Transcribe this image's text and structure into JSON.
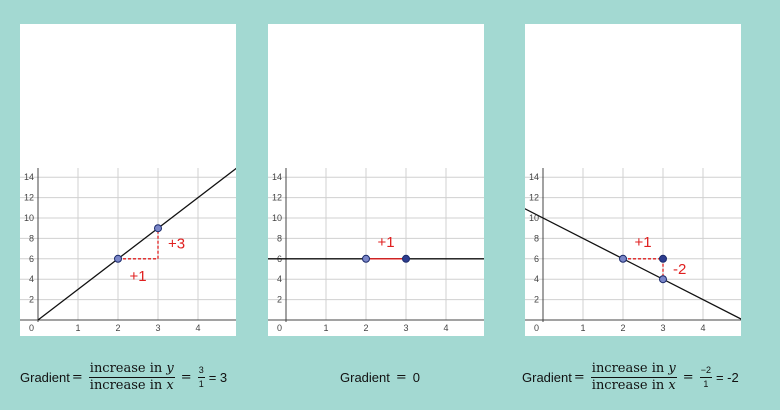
{
  "graphs": [
    {
      "y_ticks": [
        "14",
        "12",
        "10",
        "8",
        "6",
        "4",
        "2"
      ],
      "x_ticks": [
        "1",
        "2",
        "3",
        "4"
      ],
      "origin_label": "0",
      "line": {
        "x1": 0,
        "y1": 0,
        "x2": 5,
        "y2": 15
      },
      "points": [
        {
          "x": 2,
          "y": 6
        },
        {
          "x": 3,
          "y": 9
        }
      ],
      "horizontal_step": {
        "from": [
          2,
          6
        ],
        "to": [
          3,
          6
        ],
        "label": "+1"
      },
      "vertical_step": {
        "from": [
          3,
          6
        ],
        "to": [
          3,
          9
        ],
        "label": "+3"
      }
    },
    {
      "y_ticks": [
        "14",
        "12",
        "10",
        "8",
        "6",
        "4",
        "2"
      ],
      "x_ticks": [
        "1",
        "2",
        "3",
        "4"
      ],
      "origin_label": "0",
      "line": {
        "x1": -0.5,
        "y1": 6,
        "x2": 5,
        "y2": 6
      },
      "points": [
        {
          "x": 2,
          "y": 6
        },
        {
          "x": 3,
          "y": 6
        }
      ],
      "horizontal_step": {
        "from": [
          2,
          6
        ],
        "to": [
          3,
          6
        ],
        "label": "+1"
      },
      "vertical_step": null
    },
    {
      "y_ticks": [
        "14",
        "12",
        "10",
        "8",
        "6",
        "4",
        "2"
      ],
      "x_ticks": [
        "1",
        "2",
        "3",
        "4"
      ],
      "origin_label": "0",
      "line": {
        "x1": -0.5,
        "y1": 11,
        "x2": 5,
        "y2": 0
      },
      "points": [
        {
          "x": 2,
          "y": 6
        },
        {
          "x": 3,
          "y": 6
        },
        {
          "x": 3,
          "y": 4
        }
      ],
      "horizontal_step": {
        "from": [
          2,
          6
        ],
        "to": [
          3,
          6
        ],
        "label": "+1"
      },
      "vertical_step": {
        "from": [
          3,
          6
        ],
        "to": [
          3,
          4
        ],
        "label": "-2"
      }
    }
  ],
  "formulas": {
    "f0": {
      "label": "Gradient",
      "eq1": "=",
      "num": "increase in ",
      "num_var": "y",
      "den": "increase in ",
      "den_var": "x",
      "eq2": "=",
      "snum": "3",
      "sden": "1",
      "result": "= 3"
    },
    "f1": {
      "label": "Gradient",
      "eq": "=",
      "result": "0"
    },
    "f2": {
      "label": "Gradient",
      "eq1": "=",
      "num": "increase in ",
      "num_var": "y",
      "den": "increase in ",
      "den_var": "x",
      "eq2": "=",
      "snum": "−2",
      "sden": "1",
      "result": "= -2"
    }
  },
  "colors": {
    "background": "#a3d9d2",
    "grid": "#d0d0d0",
    "axis": "#444444",
    "line": "#111111",
    "step": "#e02020",
    "point_fill": "#7a86c8",
    "point_fill_dark": "#2e3d8f"
  }
}
